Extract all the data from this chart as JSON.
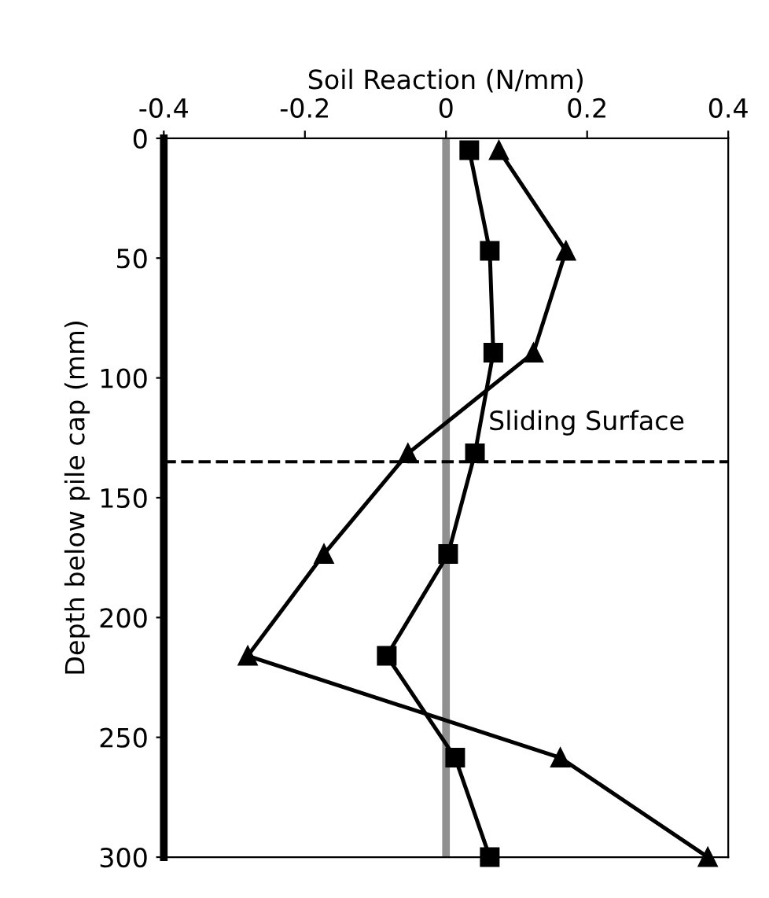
{
  "chart_data": {
    "type": "line",
    "xlabel": "Soil Reaction (N/mm)",
    "ylabel": "Depth below pile cap (mm)",
    "xlim": [
      -0.4,
      0.4
    ],
    "xticks": [
      -0.4,
      -0.2,
      0,
      0.2,
      0.4
    ],
    "ylim": [
      300,
      0
    ],
    "yticks": [
      0,
      50,
      100,
      150,
      200,
      250,
      300
    ],
    "grid": false,
    "line_style": "solid",
    "series": [
      {
        "color": "#000000",
        "marker": "square",
        "x": [
          0.033,
          0.062,
          0.067,
          0.041,
          0.003,
          -0.084,
          0.013,
          0.062
        ],
        "values": [
          5,
          47,
          89.5,
          131.5,
          173.5,
          216,
          258.5,
          300
        ]
      },
      {
        "color": "#000000",
        "marker": "triangle",
        "x": [
          0.075,
          0.17,
          0.124,
          -0.054,
          -0.173,
          -0.281,
          0.162,
          0.371
        ],
        "values": [
          5,
          47,
          89.5,
          131.5,
          173.5,
          216,
          258.5,
          300
        ]
      }
    ],
    "ref_lines": [
      {
        "axis": "x",
        "value": 0,
        "color": "#909090",
        "line_style": "solid"
      },
      {
        "axis": "y",
        "value": 135,
        "label": "Sliding Surface",
        "color": "#000000",
        "line_style": "dashed"
      }
    ]
  }
}
